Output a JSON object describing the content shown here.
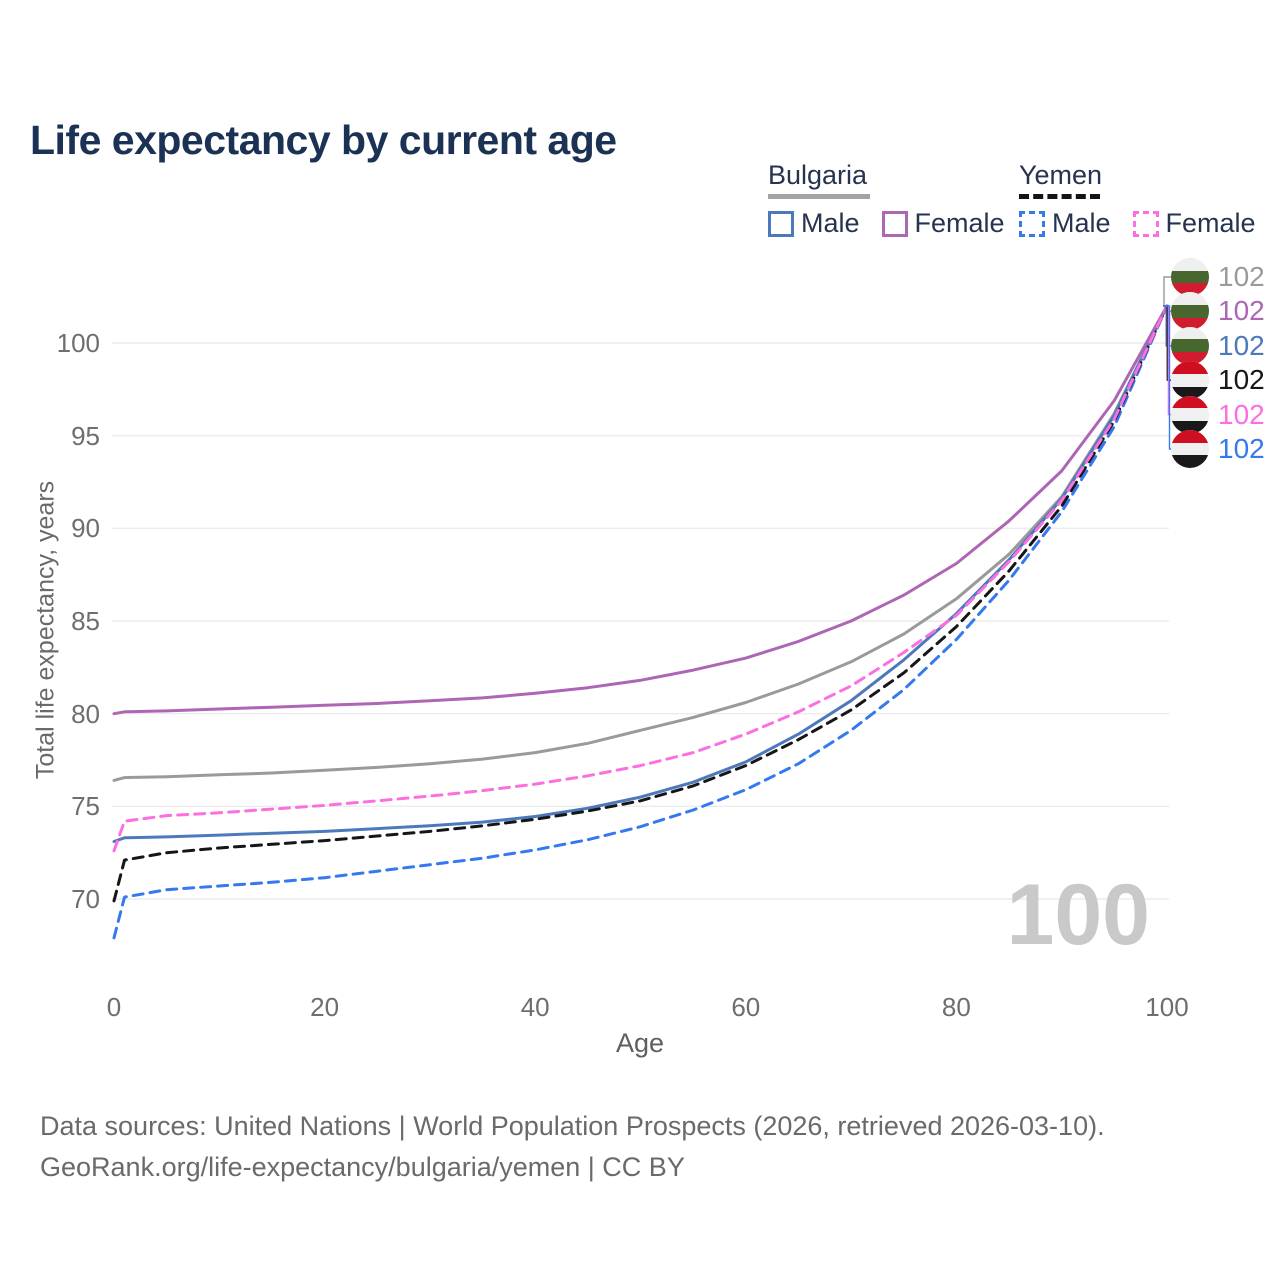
{
  "header": {
    "title": "Life expectancy by current age"
  },
  "legend": {
    "groups": [
      {
        "name": "Bulgaria",
        "line_style": "solid",
        "underline_color": "#a3a3a3",
        "items": [
          {
            "label": "Male",
            "color": "#4d79bc",
            "dashed": false
          },
          {
            "label": "Female",
            "color": "#ac66b4",
            "dashed": false
          }
        ]
      },
      {
        "name": "Yemen",
        "line_style": "dashed",
        "underline_color": "#141414",
        "items": [
          {
            "label": "Male",
            "color": "#3579ef",
            "dashed": true
          },
          {
            "label": "Female",
            "color": "#fb6fe0",
            "dashed": true
          }
        ]
      }
    ]
  },
  "chart_data": {
    "type": "line",
    "title": "Life expectancy by current age",
    "xlabel": "Age",
    "ylabel": "Total life expectancy, years",
    "xlim": [
      0,
      100
    ],
    "ylim": [
      66,
      103.5
    ],
    "xticks": [
      0,
      20,
      40,
      60,
      80,
      100
    ],
    "yticks": [
      100,
      95,
      90,
      85,
      80,
      75,
      70
    ],
    "grid": "horizontal",
    "gridline_color": "#ececec",
    "watermark": "100",
    "x": [
      0,
      1,
      5,
      10,
      15,
      20,
      25,
      30,
      35,
      40,
      45,
      50,
      55,
      60,
      65,
      70,
      75,
      80,
      85,
      90,
      95,
      100
    ],
    "series": [
      {
        "name": "Bulgaria",
        "sex": "Both",
        "color": "#9a9a9a",
        "dashed": false,
        "values": [
          76.4,
          76.55,
          76.6,
          76.7,
          76.8,
          76.95,
          77.1,
          77.3,
          77.55,
          77.9,
          78.4,
          79.1,
          79.8,
          80.6,
          81.6,
          82.8,
          84.3,
          86.2,
          88.6,
          91.7,
          96.2,
          102
        ]
      },
      {
        "name": "Bulgaria Male",
        "sex": "Male",
        "color": "#4d79bc",
        "dashed": false,
        "values": [
          73.1,
          73.3,
          73.35,
          73.45,
          73.55,
          73.65,
          73.8,
          73.95,
          74.15,
          74.45,
          74.9,
          75.5,
          76.3,
          77.4,
          78.9,
          80.7,
          82.9,
          85.4,
          88.3,
          91.6,
          96.1,
          102
        ]
      },
      {
        "name": "Yemen Male",
        "sex": "Male",
        "color": "#3579ef",
        "dashed": true,
        "values": [
          67.9,
          70.1,
          70.5,
          70.7,
          70.9,
          71.15,
          71.5,
          71.85,
          72.2,
          72.65,
          73.2,
          73.9,
          74.8,
          75.9,
          77.3,
          79.1,
          81.3,
          84.0,
          87.2,
          90.9,
          95.5,
          102
        ]
      },
      {
        "name": "Yemen",
        "sex": "Both",
        "color": "#161616",
        "dashed": true,
        "values": [
          69.9,
          72.1,
          72.5,
          72.75,
          72.95,
          73.15,
          73.4,
          73.65,
          73.95,
          74.3,
          74.75,
          75.3,
          76.1,
          77.2,
          78.6,
          80.2,
          82.2,
          84.7,
          87.7,
          91.2,
          95.8,
          102
        ]
      },
      {
        "name": "Bulgaria Female",
        "sex": "Female",
        "color": "#ac66b4",
        "dashed": false,
        "values": [
          80.0,
          80.1,
          80.15,
          80.25,
          80.35,
          80.45,
          80.55,
          80.7,
          80.85,
          81.1,
          81.4,
          81.8,
          82.35,
          83.0,
          83.9,
          85.0,
          86.4,
          88.1,
          90.4,
          93.1,
          96.9,
          102
        ]
      },
      {
        "name": "Yemen Female",
        "sex": "Female",
        "color": "#fb6fe0",
        "dashed": true,
        "values": [
          72.6,
          74.2,
          74.5,
          74.65,
          74.85,
          75.05,
          75.3,
          75.55,
          75.85,
          76.2,
          76.65,
          77.2,
          77.9,
          78.9,
          80.1,
          81.5,
          83.3,
          85.3,
          88.2,
          91.5,
          95.9,
          102
        ]
      }
    ],
    "end_labels": [
      {
        "country": "bulgaria",
        "value": "102",
        "color": "#9a9a9a"
      },
      {
        "country": "bulgaria",
        "value": "102",
        "color": "#ac66b4"
      },
      {
        "country": "bulgaria",
        "value": "102",
        "color": "#4d79bc"
      },
      {
        "country": "yemen",
        "value": "102",
        "color": "#161616"
      },
      {
        "country": "yemen",
        "value": "102",
        "color": "#fb6fe0"
      },
      {
        "country": "yemen",
        "value": "102",
        "color": "#3579ef"
      }
    ],
    "legend_position": "top-right"
  },
  "flags": {
    "bulgaria": [
      "#efefef",
      "#47672f",
      "#d01c2e"
    ],
    "yemen": [
      "#cf0f21",
      "#f0f0f0",
      "#191919"
    ]
  },
  "footer": {
    "line1": "Data sources: United Nations | World Population Prospects (2026, retrieved 2026-03-10).",
    "line2": "GeoRank.org/life-expectancy/bulgaria/yemen | CC BY"
  }
}
